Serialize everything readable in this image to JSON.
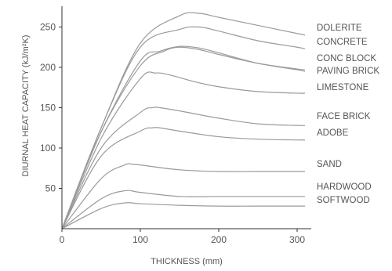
{
  "chart_data": {
    "type": "line",
    "title": "",
    "xlabel": "THICKNESS (mm)",
    "ylabel": "DIURNAL HEAT CAPACITY (kJ/m²K)",
    "xlim": [
      0,
      310
    ],
    "ylim": [
      0,
      270
    ],
    "x_ticks": [
      "0",
      "100",
      "200",
      "300"
    ],
    "y_ticks": [
      "50",
      "100",
      "150",
      "200",
      "250"
    ],
    "grid": false,
    "legend": "labels at right end of each curve",
    "series": [
      {
        "name": "DOLERITE",
        "x": [
          0,
          50,
          100,
          150,
          175,
          200,
          250,
          300,
          310
        ],
        "y": [
          0,
          125,
          230,
          264,
          267,
          262,
          252,
          242,
          240
        ]
      },
      {
        "name": "CONCRETE",
        "x": [
          0,
          50,
          100,
          150,
          175,
          200,
          250,
          300,
          310
        ],
        "y": [
          0,
          125,
          225,
          247,
          250,
          245,
          233,
          225,
          223
        ]
      },
      {
        "name": "CONC BLOCK",
        "x": [
          0,
          50,
          100,
          130,
          150,
          175,
          200,
          250,
          300,
          310
        ],
        "y": [
          0,
          120,
          202,
          220,
          225,
          222,
          216,
          205,
          198,
          197
        ]
      },
      {
        "name": "PAVING BRICK",
        "x": [
          0,
          50,
          100,
          125,
          150,
          175,
          200,
          250,
          300,
          310
        ],
        "y": [
          0,
          120,
          208,
          220,
          226,
          224,
          218,
          205,
          197,
          195
        ]
      },
      {
        "name": "LIMESTONE",
        "x": [
          0,
          50,
          100,
          120,
          140,
          170,
          200,
          250,
          300,
          310
        ],
        "y": [
          0,
          112,
          186,
          193,
          190,
          182,
          176,
          170,
          168,
          168
        ]
      },
      {
        "name": "FACE BRICK",
        "x": [
          0,
          50,
          100,
          115,
          125,
          150,
          200,
          250,
          300,
          310
        ],
        "y": [
          0,
          100,
          144,
          150,
          150,
          146,
          137,
          130,
          128,
          128
        ]
      },
      {
        "name": "ADOBE",
        "x": [
          0,
          50,
          100,
          115,
          125,
          150,
          200,
          250,
          300,
          310
        ],
        "y": [
          0,
          90,
          121,
          125,
          125,
          121,
          114,
          111,
          110,
          110
        ]
      },
      {
        "name": "SAND",
        "x": [
          0,
          50,
          80,
          90,
          100,
          150,
          200,
          250,
          300,
          310
        ],
        "y": [
          0,
          62,
          79,
          80,
          79,
          73,
          71,
          71,
          71,
          71
        ]
      },
      {
        "name": "HARDWOOD",
        "x": [
          0,
          50,
          80,
          100,
          150,
          200,
          250,
          300,
          310
        ],
        "y": [
          0,
          37,
          47,
          45,
          40,
          40,
          40,
          40,
          40
        ]
      },
      {
        "name": "SOFTWOOD",
        "x": [
          0,
          50,
          80,
          100,
          150,
          200,
          250,
          300,
          310
        ],
        "y": [
          0,
          25,
          32,
          31,
          29,
          28,
          28,
          28,
          28
        ]
      }
    ]
  }
}
